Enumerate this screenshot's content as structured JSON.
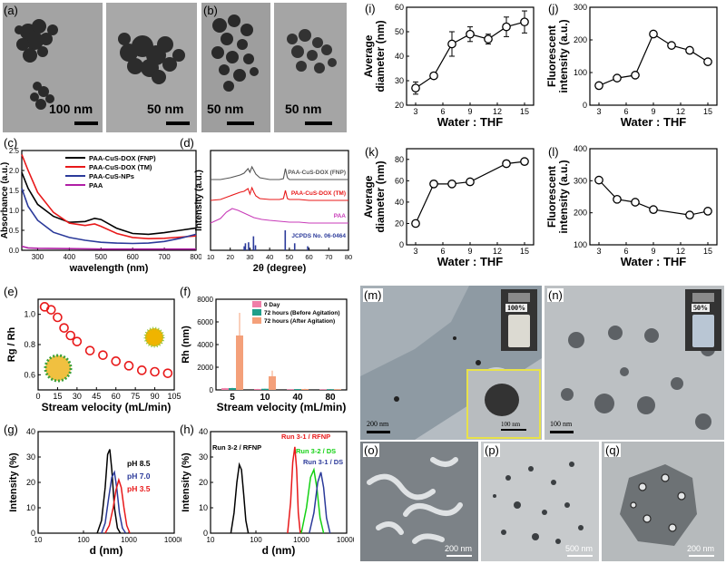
{
  "panel_letters": {
    "a": "(a)",
    "b": "(b)",
    "c": "(c)",
    "d": "(d)",
    "e": "(e)",
    "f": "(f)",
    "g": "(g)",
    "h": "(h)",
    "i": "(i)",
    "j": "(j)",
    "k": "(k)",
    "l": "(l)",
    "m": "(m)",
    "n": "(n)",
    "o": "(o)",
    "p": "(p)",
    "q": "(q)"
  },
  "tem": {
    "a_left_scale": "100 nm",
    "a_right_scale": "50 nm",
    "b_left_scale": "50 nm",
    "b_right_scale": "50 nm",
    "m_scale": "200 nm",
    "m_inset_scale": "100 nm",
    "m_vial_label": "100%",
    "n_scale": "100 nm",
    "n_vial_label": "50%",
    "o_scale": "200 nm",
    "p_scale": "500 nm",
    "q_scale": "200 nm"
  },
  "chart_data": [
    {
      "id": "c",
      "type": "line",
      "xlabel": "wavelength (nm)",
      "ylabel": "Absorbance (a.u.)",
      "xlim": [
        250,
        800
      ],
      "ylim": [
        0,
        2.5
      ],
      "xticks": [
        300,
        400,
        500,
        600,
        700,
        800
      ],
      "yticks": [
        0.0,
        0.5,
        1.0,
        1.5,
        2.0,
        2.5
      ],
      "legend": "top-right",
      "series": [
        {
          "name": "PAA-CuS-DOX (FNP)",
          "color": "#000000",
          "x": [
            250,
            270,
            300,
            350,
            400,
            450,
            480,
            500,
            550,
            600,
            650,
            700,
            750,
            800
          ],
          "y": [
            1.95,
            1.55,
            1.15,
            0.85,
            0.7,
            0.72,
            0.8,
            0.77,
            0.55,
            0.42,
            0.4,
            0.44,
            0.5,
            0.56
          ]
        },
        {
          "name": "PAA-CuS-DOX (TM)",
          "color": "#e8191a",
          "x": [
            250,
            270,
            300,
            350,
            400,
            450,
            480,
            500,
            550,
            600,
            650,
            700,
            750,
            800
          ],
          "y": [
            2.4,
            2.0,
            1.45,
            0.95,
            0.68,
            0.62,
            0.66,
            0.6,
            0.42,
            0.32,
            0.29,
            0.3,
            0.33,
            0.36
          ]
        },
        {
          "name": "PAA-CuS-NPs",
          "color": "#2b3a9a",
          "x": [
            250,
            270,
            300,
            350,
            400,
            450,
            500,
            550,
            600,
            650,
            700,
            750,
            800
          ],
          "y": [
            1.55,
            1.1,
            0.75,
            0.45,
            0.32,
            0.25,
            0.2,
            0.18,
            0.17,
            0.18,
            0.22,
            0.3,
            0.4
          ]
        },
        {
          "name": "PAA",
          "color": "#b01fa5",
          "x": [
            250,
            270,
            300,
            400,
            500,
            600,
            700,
            800
          ],
          "y": [
            0.1,
            0.06,
            0.05,
            0.04,
            0.03,
            0.03,
            0.03,
            0.03
          ]
        }
      ]
    },
    {
      "id": "d",
      "type": "line",
      "xlabel": "2θ (degree)",
      "ylabel": "Intensity (a.u.)",
      "xlim": [
        10,
        80
      ],
      "xticks": [
        10,
        20,
        30,
        40,
        50,
        60,
        70,
        80
      ],
      "series": [
        {
          "name": "PAA-CuS-DOX (FNP)",
          "color": "#555555",
          "x": [
            10,
            15,
            20,
            25,
            27,
            29,
            30,
            31,
            32,
            33,
            35,
            40,
            45,
            47,
            48,
            49,
            50,
            55,
            60,
            65,
            70,
            75,
            80
          ],
          "y": [
            0.78,
            0.78,
            0.8,
            0.83,
            0.85,
            0.9,
            0.86,
            0.92,
            0.88,
            0.84,
            0.8,
            0.78,
            0.78,
            0.79,
            0.9,
            0.8,
            0.78,
            0.78,
            0.78,
            0.78,
            0.78,
            0.78,
            0.78
          ]
        },
        {
          "name": "PAA-CuS-DOX (TM)",
          "color": "#e8191a",
          "x": [
            10,
            15,
            20,
            25,
            27,
            29,
            30,
            31,
            32,
            33,
            35,
            40,
            45,
            47,
            48,
            49,
            50,
            55,
            60,
            65,
            70,
            75,
            80
          ],
          "y": [
            0.55,
            0.56,
            0.6,
            0.64,
            0.65,
            0.68,
            0.62,
            0.69,
            0.64,
            0.6,
            0.57,
            0.56,
            0.56,
            0.57,
            0.66,
            0.57,
            0.56,
            0.56,
            0.55,
            0.55,
            0.55,
            0.55,
            0.55
          ]
        },
        {
          "name": "PAA",
          "color": "#c83bb8",
          "x": [
            10,
            15,
            18,
            21,
            24,
            28,
            32,
            36,
            40,
            45,
            50,
            55,
            60,
            65,
            70,
            75,
            80
          ],
          "y": [
            0.3,
            0.35,
            0.42,
            0.46,
            0.44,
            0.4,
            0.36,
            0.34,
            0.33,
            0.32,
            0.31,
            0.31,
            0.3,
            0.3,
            0.3,
            0.3,
            0.3
          ]
        }
      ],
      "reference": {
        "name": "JCPDS No. 06-0464",
        "color": "#2b3a9a",
        "x": [
          27.1,
          27.7,
          29.3,
          31.8,
          32.8,
          47.9,
          52.7,
          59.3
        ],
        "y": [
          0.2,
          0.35,
          0.4,
          0.7,
          0.25,
          1.0,
          0.35,
          0.2
        ]
      }
    },
    {
      "id": "e",
      "type": "scatter",
      "xlabel": "Stream velocity (mL/min)",
      "ylabel": "Rg / Rh",
      "xlim": [
        0,
        105
      ],
      "ylim": [
        0.5,
        1.1
      ],
      "xticks": [
        0,
        15,
        30,
        45,
        60,
        75,
        90,
        105
      ],
      "yticks": [
        0.6,
        0.8,
        1.0
      ],
      "color": "#e8191a",
      "x": [
        5,
        10,
        15,
        20,
        25,
        30,
        40,
        50,
        60,
        70,
        80,
        90,
        100
      ],
      "y": [
        1.05,
        1.03,
        0.98,
        0.91,
        0.86,
        0.82,
        0.76,
        0.73,
        0.69,
        0.66,
        0.63,
        0.62,
        0.61
      ]
    },
    {
      "id": "f",
      "type": "bar",
      "xlabel": "Stream velocity (mL/min)",
      "ylabel": "Rh (nm)",
      "categories": [
        "5",
        "10",
        "40",
        "80"
      ],
      "ylim": [
        0,
        8000
      ],
      "yticks": [
        0,
        2000,
        4000,
        6000,
        8000
      ],
      "legend": "top-right",
      "series": [
        {
          "name": "0 Day",
          "color": "#f07ea8",
          "values": [
            150,
            80,
            60,
            50
          ],
          "err": [
            20,
            10,
            10,
            10
          ]
        },
        {
          "name": "72 hours (Before Agitation)",
          "color": "#1f9e8a",
          "values": [
            160,
            100,
            70,
            60
          ],
          "err": [
            20,
            10,
            10,
            10
          ]
        },
        {
          "name": "72 hours (After Agitation)",
          "color": "#f4a07a",
          "values": [
            4800,
            1200,
            80,
            60
          ],
          "err": [
            2000,
            500,
            20,
            10
          ]
        }
      ]
    },
    {
      "id": "g",
      "type": "line",
      "xlabel": "d (nm)",
      "ylabel": "Intensity (%)",
      "xscale": "log",
      "xlim": [
        10,
        10000
      ],
      "ylim": [
        0,
        40
      ],
      "xticks": [
        10,
        100,
        1000,
        10000
      ],
      "xticklabels": [
        "10",
        "100",
        "1000",
        "10000"
      ],
      "yticks": [
        0,
        10,
        20,
        30,
        40
      ],
      "series": [
        {
          "name": "pH 8.5",
          "color": "#000000",
          "x": [
            200,
            250,
            300,
            340,
            380,
            420,
            480,
            560,
            650
          ],
          "y": [
            0,
            5,
            18,
            31,
            33,
            25,
            10,
            2,
            0
          ]
        },
        {
          "name": "pH 7.0",
          "color": "#2b3a9a",
          "x": [
            250,
            300,
            360,
            420,
            480,
            540,
            620,
            720,
            850
          ],
          "y": [
            0,
            4,
            14,
            22,
            24,
            18,
            8,
            2,
            0
          ]
        },
        {
          "name": "pH 3.5",
          "color": "#e8191a",
          "x": [
            300,
            370,
            450,
            520,
            600,
            680,
            780,
            900,
            1050
          ],
          "y": [
            0,
            3,
            10,
            17,
            21,
            18,
            10,
            3,
            0
          ]
        }
      ]
    },
    {
      "id": "h",
      "type": "line",
      "xlabel": "d (nm)",
      "ylabel": "Intensity (%)",
      "xscale": "log",
      "xlim": [
        10,
        10000
      ],
      "ylim": [
        0,
        40
      ],
      "xticks": [
        10,
        100,
        1000,
        10000
      ],
      "xticklabels": [
        "10",
        "100",
        "1000",
        "10000"
      ],
      "yticks": [
        0,
        10,
        20,
        30,
        40
      ],
      "series": [
        {
          "name": "Run 3-2 / RFNP",
          "color": "#000000",
          "x": [
            28,
            33,
            38,
            43,
            48,
            54,
            60,
            68
          ],
          "y": [
            0,
            8,
            20,
            27,
            25,
            15,
            5,
            0
          ]
        },
        {
          "name": "Run 3-1 / RFNP",
          "color": "#e8191a",
          "x": [
            500,
            580,
            650,
            720,
            790,
            860,
            950
          ],
          "y": [
            0,
            12,
            28,
            34,
            25,
            8,
            0
          ]
        },
        {
          "name": "Run 3-2 / DS",
          "color": "#14d114",
          "x": [
            1000,
            1300,
            1600,
            1900,
            2200,
            2600,
            3100
          ],
          "y": [
            0,
            10,
            22,
            25,
            18,
            6,
            0
          ]
        },
        {
          "name": "Run 3-1 / DS",
          "color": "#2b3a9a",
          "x": [
            1500,
            1900,
            2300,
            2700,
            3100,
            3600,
            4300
          ],
          "y": [
            0,
            8,
            20,
            24,
            18,
            6,
            0
          ]
        }
      ]
    },
    {
      "id": "i",
      "type": "line",
      "xlabel": "Water : THF",
      "ylabel": "Average diameter (nm)",
      "xlim": [
        2,
        16
      ],
      "ylim": [
        20,
        60
      ],
      "xticks": [
        3,
        6,
        9,
        12,
        15
      ],
      "yticks": [
        20,
        30,
        40,
        50,
        60
      ],
      "x": [
        3,
        5,
        7,
        9,
        11,
        13,
        15
      ],
      "y": [
        27,
        32,
        45,
        49,
        47,
        52,
        54
      ],
      "err": [
        2.5,
        0.8,
        5,
        3,
        2,
        4,
        4.5
      ]
    },
    {
      "id": "j",
      "type": "line",
      "xlabel": "Water : THF",
      "ylabel": "Fluorescent intensity (a.u.)",
      "xlim": [
        2,
        16
      ],
      "ylim": [
        0,
        300
      ],
      "xticks": [
        3,
        6,
        9,
        12,
        15
      ],
      "yticks": [
        0,
        100,
        200,
        300
      ],
      "x": [
        3,
        5,
        7,
        9,
        11,
        13,
        15
      ],
      "y": [
        60,
        83,
        92,
        218,
        183,
        168,
        133
      ]
    },
    {
      "id": "k",
      "type": "line",
      "xlabel": "Water : THF",
      "ylabel": "Average diameter (nm)",
      "xlim": [
        2,
        16
      ],
      "ylim": [
        0,
        90
      ],
      "xticks": [
        3,
        6,
        9,
        12,
        15
      ],
      "yticks": [
        0,
        20,
        40,
        60,
        80
      ],
      "x": [
        3,
        5,
        7,
        9,
        13,
        15
      ],
      "y": [
        20,
        57,
        57,
        59,
        76,
        78
      ],
      "err": [
        1,
        3,
        1,
        1.5,
        3,
        1
      ]
    },
    {
      "id": "l",
      "type": "line",
      "xlabel": "Water : THF",
      "ylabel": "Fluorescent intensity (a.u.)",
      "xlim": [
        2,
        16
      ],
      "ylim": [
        100,
        400
      ],
      "xticks": [
        3,
        6,
        9,
        12,
        15
      ],
      "yticks": [
        100,
        200,
        300,
        400
      ],
      "x": [
        3,
        5,
        7,
        9,
        13,
        15
      ],
      "y": [
        302,
        242,
        233,
        210,
        193,
        205
      ]
    }
  ]
}
